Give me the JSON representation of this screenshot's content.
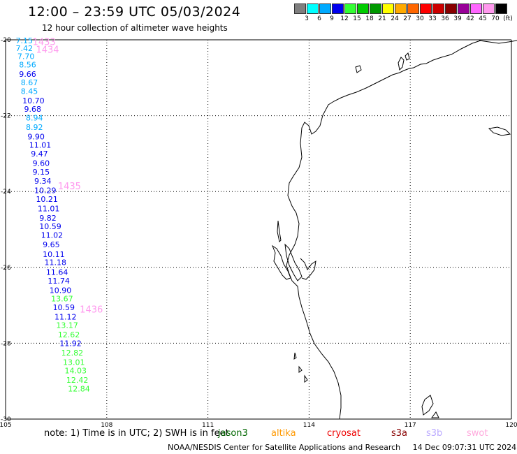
{
  "title": "12:00 – 23:59 UTC 05/03/2024",
  "subtitle": "12 hour collection of altimeter wave heights",
  "legend": {
    "colors": [
      "#7f7f7f",
      "#00ffff",
      "#00aaff",
      "#0000ee",
      "#33ff33",
      "#00cc00",
      "#009900",
      "#ffff00",
      "#ffaa00",
      "#ff6600",
      "#ff0000",
      "#cc0000",
      "#880000",
      "#990099",
      "#ff66ff",
      "#ff99ee",
      "#000000"
    ],
    "labels": [
      "3",
      "6",
      "9",
      "12",
      "15",
      "18",
      "21",
      "24",
      "27",
      "30",
      "33",
      "36",
      "39",
      "42",
      "45",
      "70"
    ],
    "unit": "(ft)"
  },
  "map": {
    "lon_ticks": [
      "105",
      "108",
      "111",
      "114",
      "117",
      "120"
    ],
    "lat_ticks": [
      "-20",
      "-22",
      "-24",
      "-26",
      "-28",
      "-30"
    ],
    "lon_range": [
      105,
      120
    ],
    "lat_range": [
      -30,
      -20
    ]
  },
  "chart_data": {
    "type": "scatter",
    "x_axis": "longitude",
    "y_axis": "latitude",
    "track_labels": [
      {
        "text": "1433",
        "lon": 105.8,
        "lat": -20.05,
        "color": "#ff99ee"
      },
      {
        "text": "1434",
        "lon": 105.9,
        "lat": -20.25,
        "color": "#ff99ee"
      },
      {
        "text": "1435",
        "lon": 106.55,
        "lat": -23.85,
        "color": "#ff99ee"
      },
      {
        "text": "1436",
        "lon": 107.2,
        "lat": -27.1,
        "color": "#ff99ee"
      }
    ],
    "points": [
      {
        "lon": 105.3,
        "lat": -20.02,
        "value": "7.15",
        "color": "#00aaff"
      },
      {
        "lon": 105.3,
        "lat": -20.22,
        "value": "7.42",
        "color": "#00aaff"
      },
      {
        "lon": 105.35,
        "lat": -20.43,
        "value": "7.70",
        "color": "#00aaff"
      },
      {
        "lon": 105.4,
        "lat": -20.65,
        "value": "8.56",
        "color": "#00aaff"
      },
      {
        "lon": 105.4,
        "lat": -20.9,
        "value": "9.66",
        "color": "#0000ee"
      },
      {
        "lon": 105.45,
        "lat": -21.12,
        "value": "8.67",
        "color": "#00aaff"
      },
      {
        "lon": 105.45,
        "lat": -21.35,
        "value": "8.45",
        "color": "#00aaff"
      },
      {
        "lon": 105.5,
        "lat": -21.6,
        "value": "10.70",
        "color": "#0000ee"
      },
      {
        "lon": 105.55,
        "lat": -21.82,
        "value": "9.68",
        "color": "#0000ee"
      },
      {
        "lon": 105.6,
        "lat": -22.05,
        "value": "8.94",
        "color": "#00aaff"
      },
      {
        "lon": 105.6,
        "lat": -22.3,
        "value": "8.92",
        "color": "#00aaff"
      },
      {
        "lon": 105.65,
        "lat": -22.55,
        "value": "9.90",
        "color": "#0000ee"
      },
      {
        "lon": 105.7,
        "lat": -22.77,
        "value": "11.01",
        "color": "#0000ee"
      },
      {
        "lon": 105.75,
        "lat": -23.0,
        "value": "9.47",
        "color": "#0000ee"
      },
      {
        "lon": 105.8,
        "lat": -23.25,
        "value": "9.60",
        "color": "#0000ee"
      },
      {
        "lon": 105.8,
        "lat": -23.48,
        "value": "9.15",
        "color": "#0000ee"
      },
      {
        "lon": 105.85,
        "lat": -23.72,
        "value": "9.34",
        "color": "#0000ee"
      },
      {
        "lon": 105.85,
        "lat": -23.97,
        "value": "10.29",
        "color": "#0000ee"
      },
      {
        "lon": 105.9,
        "lat": -24.2,
        "value": "10.21",
        "color": "#0000ee"
      },
      {
        "lon": 105.95,
        "lat": -24.45,
        "value": "11.01",
        "color": "#0000ee"
      },
      {
        "lon": 106.0,
        "lat": -24.7,
        "value": "9.82",
        "color": "#0000ee"
      },
      {
        "lon": 106.0,
        "lat": -24.92,
        "value": "10.59",
        "color": "#0000ee"
      },
      {
        "lon": 106.05,
        "lat": -25.15,
        "value": "11.02",
        "color": "#0000ee"
      },
      {
        "lon": 106.1,
        "lat": -25.4,
        "value": "9.65",
        "color": "#0000ee"
      },
      {
        "lon": 106.1,
        "lat": -25.65,
        "value": "10.11",
        "color": "#0000ee"
      },
      {
        "lon": 106.15,
        "lat": -25.87,
        "value": "11.18",
        "color": "#0000ee"
      },
      {
        "lon": 106.2,
        "lat": -26.12,
        "value": "11.64",
        "color": "#0000ee"
      },
      {
        "lon": 106.25,
        "lat": -26.35,
        "value": "11.74",
        "color": "#0000ee"
      },
      {
        "lon": 106.3,
        "lat": -26.6,
        "value": "10.90",
        "color": "#0000ee"
      },
      {
        "lon": 106.35,
        "lat": -26.82,
        "value": "13.67",
        "color": "#33ff33"
      },
      {
        "lon": 106.4,
        "lat": -27.05,
        "value": "10.59",
        "color": "#0000ee"
      },
      {
        "lon": 106.45,
        "lat": -27.3,
        "value": "11.12",
        "color": "#0000ee"
      },
      {
        "lon": 106.5,
        "lat": -27.52,
        "value": "13.17",
        "color": "#33ff33"
      },
      {
        "lon": 106.55,
        "lat": -27.77,
        "value": "12.62",
        "color": "#33ff33"
      },
      {
        "lon": 106.6,
        "lat": -28.0,
        "value": "11.92",
        "color": "#0000ee"
      },
      {
        "lon": 106.65,
        "lat": -28.25,
        "value": "12.82",
        "color": "#33ff33"
      },
      {
        "lon": 106.7,
        "lat": -28.5,
        "value": "13.01",
        "color": "#33ff33"
      },
      {
        "lon": 106.75,
        "lat": -28.72,
        "value": "14.03",
        "color": "#33ff33"
      },
      {
        "lon": 106.8,
        "lat": -28.97,
        "value": "12.42",
        "color": "#33ff33"
      },
      {
        "lon": 106.85,
        "lat": -29.2,
        "value": "12.84",
        "color": "#33ff33"
      }
    ]
  },
  "footer": {
    "note": "note:  1) Time is in UTC; 2) SWH is in feet",
    "satellites": [
      {
        "name": "jason3",
        "color": "#006600"
      },
      {
        "name": "altika",
        "color": "#ff9900"
      },
      {
        "name": "cryosat",
        "color": "#ee0000"
      },
      {
        "name": "s3a",
        "color": "#880000"
      },
      {
        "name": "s3b",
        "color": "#bbaaff"
      },
      {
        "name": "swot",
        "color": "#ffaadd"
      }
    ],
    "credit": "NOAA/NESDIS Center for Satellite Applications and Research",
    "timestamp": "14 Dec 09:07:31 UTC 2024"
  }
}
